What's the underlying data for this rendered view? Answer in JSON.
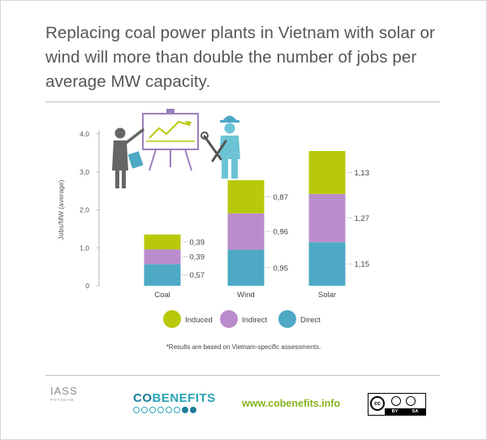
{
  "title": "Replacing coal power plants in Vietnam with solar or wind will more than double the number of jobs per average MW capacity.",
  "footnote": "*Results are based on Vietnam-specific assessments.",
  "footer": {
    "iass_logo": "IASS",
    "iass_sub": "POTSDAM",
    "cobenefits_logo": "COBENEFITS",
    "url": "www.cobenefits.info",
    "license_left": "BY",
    "license_right": "SA"
  },
  "chart_data": {
    "type": "bar",
    "stacked": true,
    "categories": [
      "Coal",
      "Wind",
      "Solar"
    ],
    "ylabel": "Jobs/MW (average)",
    "ylim": [
      0,
      4
    ],
    "yticks": [
      "0",
      "1,0",
      "2,0",
      "3,0",
      "4,0"
    ],
    "grid": false,
    "legend_position": "bottom",
    "series": [
      {
        "name": "Direct",
        "color": "#4ea9c4",
        "values": [
          0.57,
          0.95,
          1.15
        ],
        "labels": [
          "0,57",
          "0,95",
          "1,15"
        ]
      },
      {
        "name": "Indirect",
        "color": "#bb8ccc",
        "values": [
          0.39,
          0.96,
          1.27
        ],
        "labels": [
          "0,39",
          "0,96",
          "1,27"
        ]
      },
      {
        "name": "Induced",
        "color": "#b8c90b",
        "values": [
          0.39,
          0.87,
          1.13
        ],
        "labels": [
          "0,39",
          "0,87",
          "1,13"
        ]
      }
    ],
    "legend_order": [
      "Induced",
      "Indirect",
      "Direct"
    ]
  },
  "icons": [
    "presenter-chart-icon",
    "worker-tools-icon",
    "cc-license-icon"
  ]
}
